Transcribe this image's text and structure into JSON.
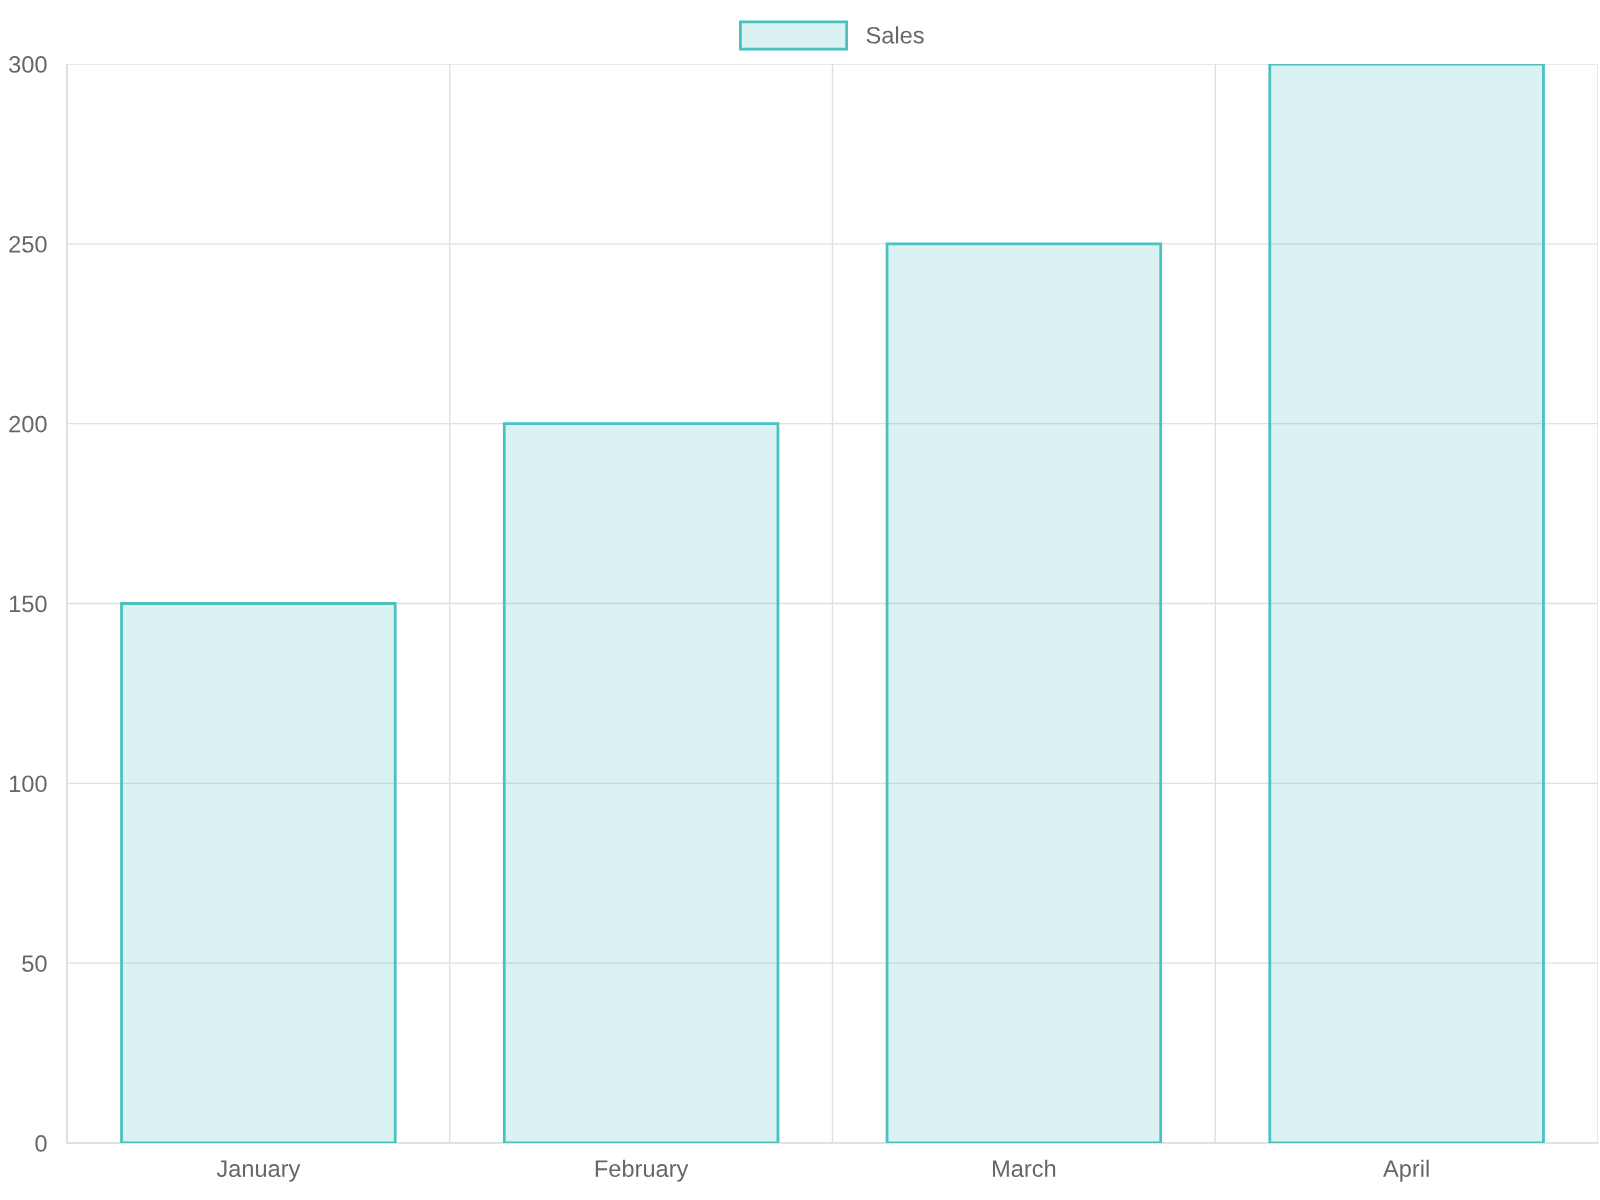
{
  "chart_data": {
    "type": "bar",
    "categories": [
      "January",
      "February",
      "March",
      "April"
    ],
    "series": [
      {
        "name": "Sales",
        "color": "#4bc0c0",
        "values": [
          150,
          200,
          250,
          300
        ]
      }
    ],
    "ylim": [
      0,
      300
    ],
    "yticks": [
      0,
      50,
      100,
      150,
      200,
      250,
      300
    ],
    "grid": true,
    "legend": "top"
  }
}
